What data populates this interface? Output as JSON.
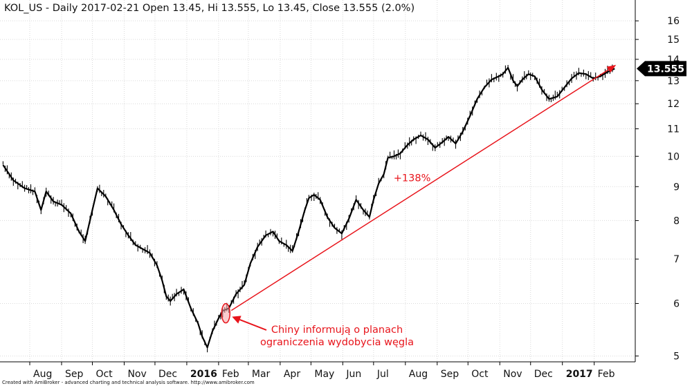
{
  "header": {
    "title": "KOL_US - Daily 2017-02-21 Open 13.45, Hi 13.555, Lo 13.45, Close 13.555 (2.0%)"
  },
  "footer": {
    "credit": "Created with AmiBroker - advanced charting and technical analysis software. http://www.amibroker.com"
  },
  "annotations": {
    "note_line1": "Chiny informują o planach",
    "note_line2": "ograniczenia wydobycia węgla",
    "change_label": "+138%"
  },
  "colors": {
    "price": "#000000",
    "annotation": "#e8141b",
    "grid": "#d9d9d9",
    "last_price_bg": "#000000"
  },
  "chart_data": {
    "type": "line",
    "title": "KOL_US - Daily 2017-02-21 Open 13.45, Hi 13.555, Lo 13.45, Close 13.555 (2.0%)",
    "xlabel": "",
    "ylabel": "",
    "y_scale": "log",
    "ylim": [
      4.9,
      17.2
    ],
    "y_ticks": [
      5,
      6,
      7,
      8,
      9,
      10,
      11,
      12,
      13,
      14,
      15,
      16
    ],
    "x_ticks": [
      {
        "label": "Aug",
        "x": "2015-08-01"
      },
      {
        "label": "Sep",
        "x": "2015-09-01"
      },
      {
        "label": "Oct",
        "x": "2015-10-01"
      },
      {
        "label": "Nov",
        "x": "2015-11-01"
      },
      {
        "label": "Dec",
        "x": "2015-12-01"
      },
      {
        "label": "2016",
        "x": "2016-01-01",
        "bold": true
      },
      {
        "label": "Feb",
        "x": "2016-02-01"
      },
      {
        "label": "Mar",
        "x": "2016-03-01"
      },
      {
        "label": "Apr",
        "x": "2016-04-01"
      },
      {
        "label": "May",
        "x": "2016-05-01"
      },
      {
        "label": "Jun",
        "x": "2016-06-01"
      },
      {
        "label": "Jul",
        "x": "2016-07-01"
      },
      {
        "label": "Aug",
        "x": "2016-08-01"
      },
      {
        "label": "Sep",
        "x": "2016-09-01"
      },
      {
        "label": "Oct",
        "x": "2016-10-01"
      },
      {
        "label": "Nov",
        "x": "2016-11-01"
      },
      {
        "label": "Dec",
        "x": "2016-12-01"
      },
      {
        "label": "2017",
        "x": "2017-01-01",
        "bold": true
      },
      {
        "label": "Feb",
        "x": "2017-02-01"
      }
    ],
    "xlim": [
      "2015-07-03",
      "2017-03-13"
    ],
    "grid": true,
    "legend": "none",
    "series": [
      {
        "points": [
          [
            "2015-07-06",
            9.7
          ],
          [
            "2015-07-16",
            9.2
          ],
          [
            "2015-07-27",
            8.95
          ],
          [
            "2015-08-06",
            8.85
          ],
          [
            "2015-08-12",
            8.3
          ],
          [
            "2015-08-17",
            8.85
          ],
          [
            "2015-08-24",
            8.55
          ],
          [
            "2015-09-01",
            8.45
          ],
          [
            "2015-09-10",
            8.2
          ],
          [
            "2015-09-18",
            7.7
          ],
          [
            "2015-09-24",
            7.45
          ],
          [
            "2015-10-01",
            8.3
          ],
          [
            "2015-10-06",
            8.95
          ],
          [
            "2015-10-14",
            8.7
          ],
          [
            "2015-10-22",
            8.3
          ],
          [
            "2015-10-29",
            7.9
          ],
          [
            "2015-11-05",
            7.6
          ],
          [
            "2015-11-12",
            7.35
          ],
          [
            "2015-11-19",
            7.25
          ],
          [
            "2015-11-26",
            7.15
          ],
          [
            "2015-12-03",
            6.85
          ],
          [
            "2015-12-08",
            6.5
          ],
          [
            "2015-12-12",
            6.15
          ],
          [
            "2015-12-16",
            6.05
          ],
          [
            "2015-12-22",
            6.2
          ],
          [
            "2015-12-29",
            6.3
          ],
          [
            "2016-01-05",
            5.9
          ],
          [
            "2016-01-12",
            5.6
          ],
          [
            "2016-01-16",
            5.35
          ],
          [
            "2016-01-21",
            5.15
          ],
          [
            "2016-01-26",
            5.45
          ],
          [
            "2016-02-01",
            5.7
          ],
          [
            "2016-02-05",
            5.85
          ],
          [
            "2016-02-11",
            5.9
          ],
          [
            "2016-02-18",
            6.2
          ],
          [
            "2016-02-26",
            6.4
          ],
          [
            "2016-03-03",
            6.9
          ],
          [
            "2016-03-10",
            7.3
          ],
          [
            "2016-03-18",
            7.6
          ],
          [
            "2016-03-25",
            7.7
          ],
          [
            "2016-03-31",
            7.45
          ],
          [
            "2016-04-07",
            7.35
          ],
          [
            "2016-04-13",
            7.2
          ],
          [
            "2016-04-19",
            7.7
          ],
          [
            "2016-04-25",
            8.3
          ],
          [
            "2016-04-29",
            8.65
          ],
          [
            "2016-05-04",
            8.75
          ],
          [
            "2016-05-10",
            8.6
          ],
          [
            "2016-05-17",
            8.1
          ],
          [
            "2016-05-24",
            7.8
          ],
          [
            "2016-05-31",
            7.65
          ],
          [
            "2016-06-07",
            8.05
          ],
          [
            "2016-06-14",
            8.6
          ],
          [
            "2016-06-21",
            8.3
          ],
          [
            "2016-06-27",
            8.1
          ],
          [
            "2016-07-01",
            8.6
          ],
          [
            "2016-07-06",
            9.1
          ],
          [
            "2016-07-11",
            9.4
          ],
          [
            "2016-07-15",
            9.95
          ],
          [
            "2016-07-21",
            10.0
          ],
          [
            "2016-07-27",
            10.1
          ],
          [
            "2016-08-03",
            10.4
          ],
          [
            "2016-08-09",
            10.6
          ],
          [
            "2016-08-16",
            10.75
          ],
          [
            "2016-08-23",
            10.6
          ],
          [
            "2016-08-30",
            10.3
          ],
          [
            "2016-09-06",
            10.5
          ],
          [
            "2016-09-12",
            10.7
          ],
          [
            "2016-09-19",
            10.45
          ],
          [
            "2016-09-26",
            10.9
          ],
          [
            "2016-10-03",
            11.5
          ],
          [
            "2016-10-10",
            12.2
          ],
          [
            "2016-10-17",
            12.7
          ],
          [
            "2016-10-24",
            13.05
          ],
          [
            "2016-10-31",
            13.2
          ],
          [
            "2016-11-04",
            13.3
          ],
          [
            "2016-11-09",
            13.6
          ],
          [
            "2016-11-14",
            13.0
          ],
          [
            "2016-11-18",
            12.75
          ],
          [
            "2016-11-23",
            13.05
          ],
          [
            "2016-11-29",
            13.3
          ],
          [
            "2016-12-05",
            13.2
          ],
          [
            "2016-12-12",
            12.6
          ],
          [
            "2016-12-19",
            12.2
          ],
          [
            "2016-12-27",
            12.3
          ],
          [
            "2017-01-03",
            12.7
          ],
          [
            "2017-01-10",
            13.1
          ],
          [
            "2017-01-17",
            13.35
          ],
          [
            "2017-01-24",
            13.3
          ],
          [
            "2017-01-31",
            13.1
          ],
          [
            "2017-02-07",
            13.2
          ],
          [
            "2017-02-14",
            13.4
          ],
          [
            "2017-02-21",
            13.555
          ]
        ]
      }
    ],
    "last_value": "13.555",
    "trend_arrow": {
      "from": [
        "2016-02-08",
        5.8
      ],
      "to": [
        "2017-02-21",
        13.8
      ],
      "label": "+138%"
    },
    "highlight": {
      "x": "2016-02-08",
      "y": 5.8
    }
  }
}
